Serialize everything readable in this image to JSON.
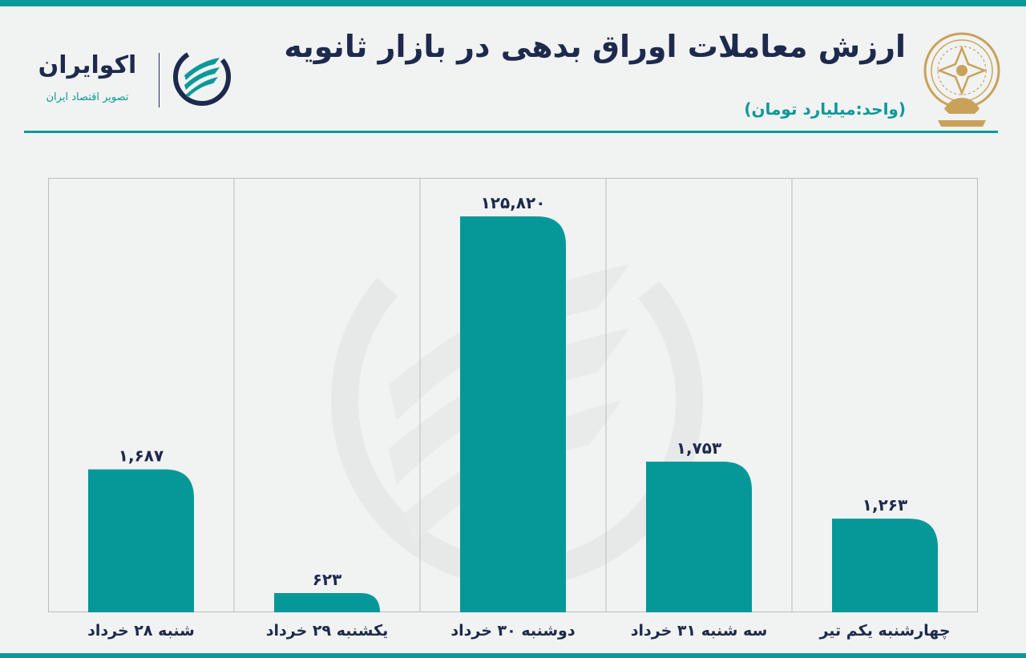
{
  "header": {
    "title": "ارزش معاملات اوراق بدهی در بازار ثانویه",
    "unit": "(واحد:میلیارد تومان)"
  },
  "brand": {
    "name": "اکوایران",
    "tagline": "تصویر اقتصاد ایران",
    "logo_icon": "ecoiran-logo-icon",
    "emblem_icon": "exchange-emblem-icon"
  },
  "colors": {
    "bar": "#069899",
    "accent": "#0a9999",
    "text": "#1d2a4d",
    "emblem": "#c9a25a"
  },
  "chart_data": {
    "type": "bar",
    "categories": [
      "شنبه ۲۸ خرداد",
      "یکشنبه ۲۹ خرداد",
      "دوشنبه ۳۰ خرداد",
      "سه شنبه ۳۱ خرداد",
      "چهارشنبه یکم تیر"
    ],
    "values": [
      1687,
      623,
      125820,
      1753,
      1263
    ],
    "value_labels": [
      "۱,۶۸۷",
      "۶۲۳",
      "۱۲۵,۸۲۰",
      "۱,۷۵۳",
      "۱,۲۶۳"
    ],
    "title": "ارزش معاملات اوراق بدهی در بازار ثانویه",
    "ylabel": "",
    "xlabel": "",
    "grid": "vertical",
    "axis_scale": "broken (not proportional)"
  }
}
